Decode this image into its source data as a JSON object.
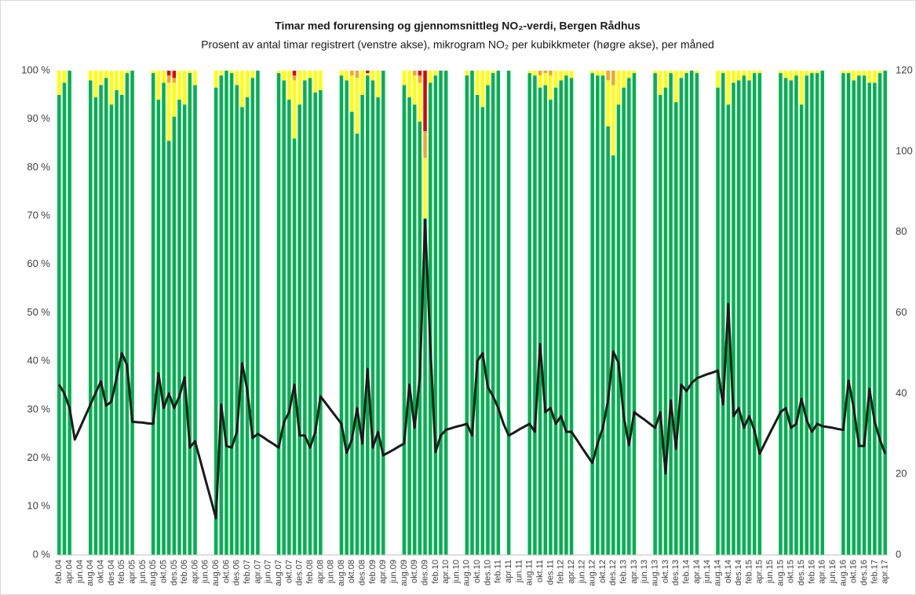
{
  "chart_data": {
    "type": "bar",
    "stacked": true,
    "title": "Timar med forurensing og gjennomsnittleg NO₂-verdi, Bergen Rådhus",
    "subtitle": "Prosent av antal timar registrert (venstre akse), mikrogram NO₂ per kubikkmeter (høgre akse), per måned",
    "categories": [
      "feb.04",
      null,
      "apr.04",
      null,
      "jun.04",
      null,
      "aug.04",
      null,
      "okt.04",
      null,
      "des.04",
      null,
      "feb.05",
      null,
      "apr.05",
      null,
      "jun.05",
      null,
      "aug.05",
      null,
      "okt.05",
      null,
      "des.05",
      null,
      "feb.06",
      null,
      "apr.06",
      null,
      "jun.06",
      null,
      "aug.06",
      null,
      "okt.06",
      null,
      "des.06",
      null,
      "feb.07",
      null,
      "apr.07",
      null,
      "jun.07",
      null,
      "aug.07",
      null,
      "okt.07",
      null,
      "des.07",
      null,
      "feb.08",
      null,
      "apr.08",
      null,
      "jun.08",
      null,
      "aug.08",
      null,
      "okt.08",
      null,
      "des.08",
      null,
      "feb.09",
      null,
      "apr.09",
      null,
      "jun.09",
      null,
      "aug.09",
      null,
      "okt.09",
      null,
      "des.09",
      null,
      "feb.10",
      null,
      "apr.10",
      null,
      "jun.10",
      null,
      "aug.10",
      null,
      "okt.10",
      null,
      "des.10",
      null,
      "feb.11",
      null,
      "apr.11",
      null,
      "jun.11",
      null,
      "aug.11",
      null,
      "okt.11",
      null,
      "des.11",
      null,
      "feb.12",
      null,
      "apr.12",
      null,
      "jun.12",
      null,
      "aug.12",
      null,
      "okt.12",
      null,
      "des.12",
      null,
      "feb.13",
      null,
      "apr.13",
      null,
      "jun.13",
      null,
      "aug.13",
      null,
      "okt.13",
      null,
      "des.13",
      null,
      "feb.14",
      null,
      "apr.14",
      null,
      "jun.14",
      null,
      "aug.14",
      null,
      "okt.14",
      null,
      "des.14",
      null,
      "feb.15",
      null,
      "apr.15",
      null,
      "jun.15",
      null,
      "aug.15",
      null,
      "okt.15",
      null,
      "des.15",
      null,
      "feb.16",
      null,
      "apr.16",
      null,
      "jun.16",
      null,
      "aug.16",
      null,
      "okt.16",
      null,
      "des.16",
      null,
      "feb.17",
      null,
      "apr.17"
    ],
    "series": [
      {
        "type": "bar",
        "color": "#00b050",
        "values": [
          95,
          97.5,
          100,
          null,
          null,
          null,
          98,
          94.5,
          97,
          98.5,
          93,
          96,
          95,
          99.5,
          100,
          null,
          null,
          null,
          99.5,
          94,
          97.5,
          85.5,
          90.5,
          94,
          93,
          99.5,
          97,
          null,
          null,
          null,
          96.5,
          99,
          100,
          99.5,
          97,
          92.5,
          94.5,
          98.5,
          100,
          null,
          null,
          null,
          99.5,
          98,
          94,
          86,
          93,
          98,
          98.5,
          95.5,
          96,
          null,
          null,
          null,
          99,
          98,
          91.5,
          87,
          95,
          99,
          98,
          94.5,
          100,
          null,
          null,
          null,
          97,
          94.5,
          93,
          89.5,
          69.5,
          97.5,
          99,
          100,
          100,
          null,
          null,
          null,
          99,
          100,
          95,
          92.5,
          97,
          99.5,
          100,
          null,
          100,
          null,
          null,
          null,
          99.5,
          99,
          96.5,
          97,
          94,
          96.5,
          98,
          99,
          98.5,
          null,
          null,
          null,
          99.5,
          99,
          99,
          88.5,
          82.5,
          93,
          96.5,
          98.5,
          99.5,
          null,
          null,
          null,
          99.5,
          95,
          96.5,
          99.5,
          93.5,
          98.5,
          99.5,
          100,
          99.5,
          null,
          null,
          null,
          96.5,
          99.5,
          93,
          97.5,
          98,
          99,
          98,
          99.5,
          99.5,
          null,
          null,
          null,
          99.5,
          98.5,
          98,
          99,
          93,
          99,
          99.5,
          99.5,
          100,
          null,
          null,
          null,
          99.5,
          99.5,
          98,
          99,
          99,
          97.5,
          97.5,
          99.5,
          100
        ]
      },
      {
        "type": "bar",
        "color": "#ffff00",
        "values": [
          5,
          2.5,
          0,
          null,
          null,
          null,
          2,
          5.5,
          3,
          1.5,
          7,
          4,
          5,
          0.5,
          0,
          null,
          null,
          null,
          0.5,
          6,
          2.5,
          12,
          7,
          6,
          7,
          0.5,
          3,
          null,
          null,
          null,
          3.5,
          1,
          0,
          0.5,
          3,
          7.5,
          5.5,
          1.5,
          0,
          null,
          null,
          null,
          0.5,
          2,
          6,
          12,
          7,
          2,
          1.5,
          4.5,
          4,
          null,
          null,
          null,
          1,
          2,
          7.5,
          11.5,
          5,
          0.5,
          2,
          5.5,
          0,
          null,
          null,
          null,
          3,
          5.5,
          6,
          8,
          12.5,
          2.5,
          1,
          0,
          0,
          null,
          null,
          null,
          1,
          0,
          5,
          7.5,
          3,
          0.5,
          0,
          null,
          0,
          null,
          null,
          null,
          0.5,
          1,
          2.5,
          2.5,
          5,
          3.5,
          2,
          1,
          1.5,
          null,
          null,
          null,
          0.5,
          1,
          1,
          9.5,
          14.5,
          7,
          3.5,
          1.5,
          0.5,
          null,
          null,
          null,
          0.5,
          5,
          3.5,
          0.5,
          6.5,
          1.5,
          0.5,
          0,
          0.5,
          null,
          null,
          null,
          3.5,
          0.5,
          7,
          2.5,
          2,
          1,
          2,
          0.5,
          0.5,
          null,
          null,
          null,
          0.5,
          1.5,
          2,
          1,
          7,
          1,
          0.5,
          0.5,
          0,
          null,
          null,
          null,
          0.5,
          0.5,
          2,
          1,
          1,
          2.5,
          2.5,
          0.5,
          0
        ]
      },
      {
        "type": "bar",
        "color": "#f5a623",
        "values": [
          0,
          0,
          0,
          null,
          null,
          null,
          0,
          0,
          0,
          0,
          0,
          0,
          0,
          0,
          0,
          null,
          null,
          null,
          0,
          0,
          0,
          1.5,
          1,
          0,
          0,
          0,
          0,
          null,
          null,
          null,
          0,
          0,
          0,
          0,
          0,
          0,
          0,
          0,
          0,
          null,
          null,
          null,
          0,
          0,
          0,
          1,
          0,
          0,
          0,
          0,
          0,
          null,
          null,
          null,
          0,
          0,
          1,
          1.5,
          0,
          0,
          0,
          0,
          0,
          null,
          null,
          null,
          0,
          0,
          1,
          1.5,
          5.5,
          0,
          0,
          0,
          0,
          null,
          null,
          null,
          0,
          0,
          0,
          0,
          0,
          0,
          0,
          null,
          0,
          null,
          null,
          null,
          0,
          0,
          1,
          0.5,
          1,
          0,
          0,
          0,
          0,
          null,
          null,
          null,
          0,
          0,
          0,
          2,
          3,
          0,
          0,
          0,
          0,
          null,
          null,
          null,
          0,
          0,
          0,
          0,
          0,
          0,
          0,
          0,
          0,
          null,
          null,
          null,
          0,
          0,
          0,
          0,
          0,
          0,
          0,
          0,
          0,
          null,
          null,
          null,
          0,
          0,
          0,
          0,
          0,
          0,
          0,
          0,
          0,
          null,
          null,
          null,
          0,
          0,
          0,
          0,
          0,
          0,
          0,
          0,
          0
        ]
      },
      {
        "type": "bar",
        "color": "#e00000",
        "values": [
          0,
          0,
          0,
          null,
          null,
          null,
          0,
          0,
          0,
          0,
          0,
          0,
          0,
          0,
          0,
          null,
          null,
          null,
          0,
          0,
          0,
          1,
          1.5,
          0,
          0,
          0,
          0,
          null,
          null,
          null,
          0,
          0,
          0,
          0,
          0,
          0,
          0,
          0,
          0,
          null,
          null,
          null,
          0,
          0,
          0,
          1,
          0,
          0,
          0,
          0,
          0,
          null,
          null,
          null,
          0,
          0,
          0,
          0,
          0,
          0.5,
          0,
          0,
          0,
          null,
          null,
          null,
          0,
          0,
          0,
          1,
          12.5,
          0,
          0,
          0,
          0,
          null,
          null,
          null,
          0,
          0,
          0,
          0,
          0,
          0,
          0,
          null,
          0,
          null,
          null,
          null,
          0,
          0,
          0,
          0,
          0,
          0,
          0,
          0,
          0,
          null,
          null,
          null,
          0,
          0,
          0,
          0,
          0,
          0,
          0,
          0,
          0,
          null,
          null,
          null,
          0,
          0,
          0,
          0,
          0,
          0,
          0,
          0,
          0,
          null,
          null,
          null,
          0,
          0,
          0,
          0,
          0,
          0,
          0,
          0,
          0,
          null,
          null,
          null,
          0,
          0,
          0,
          0,
          0,
          0,
          0,
          0,
          0,
          null,
          null,
          null,
          0,
          0,
          0,
          0,
          0,
          0,
          0,
          0,
          0
        ]
      },
      {
        "type": "line",
        "axis": "y2",
        "color": "#1a1a1a",
        "values": [
          42.2,
          40,
          36.4,
          28.6,
          31.5,
          34.4,
          37.3,
          40.2,
          43,
          37,
          38,
          44,
          50,
          47,
          33,
          32.9,
          32.8,
          32.6,
          32.5,
          45,
          36.4,
          40,
          36.4,
          39.3,
          44,
          26.6,
          28.2,
          23.4,
          18.6,
          13.9,
          9.1,
          37.3,
          27,
          26.6,
          30.5,
          47.5,
          40.8,
          29,
          30,
          29.2,
          28.3,
          27.5,
          26.6,
          32.9,
          35.4,
          42.2,
          29.6,
          29.6,
          26.6,
          30.5,
          39.3,
          37.6,
          35.9,
          34.2,
          32.5,
          25.3,
          28.6,
          36.4,
          27.6,
          46.1,
          26.6,
          30.5,
          24.7,
          25.4,
          26.1,
          26.9,
          27.6,
          42.2,
          31.5,
          44.1,
          83,
          51.9,
          25.5,
          29.6,
          31,
          31.4,
          31.8,
          32.1,
          32.5,
          29.6,
          48,
          50,
          41.6,
          39.3,
          36.4,
          32.5,
          29.6,
          30.3,
          31.1,
          31.8,
          32.5,
          30.5,
          52.3,
          35.4,
          36.4,
          32.5,
          34.4,
          30.5,
          30.5,
          28.6,
          26.6,
          24.7,
          22.8,
          27.6,
          31.5,
          38.3,
          50.4,
          47.6,
          34.4,
          27.2,
          35.4,
          34.4,
          33.5,
          32.5,
          31.5,
          35.4,
          20.2,
          38.3,
          26.3,
          42.2,
          40.6,
          42.6,
          43.8,
          44.3,
          44.8,
          45.2,
          45.7,
          37.3,
          62.2,
          34.4,
          36.4,
          31.5,
          34.4,
          30.9,
          25.1,
          27.7,
          30.3,
          32.8,
          35.4,
          36.4,
          31.5,
          32.5,
          38.7,
          33.4,
          30.5,
          32.5,
          31.9,
          31.7,
          31.5,
          31.2,
          31,
          43.2,
          36.4,
          27,
          27,
          41.2,
          33,
          28.6,
          25.1
        ]
      }
    ],
    "ylim": [
      0,
      100
    ],
    "yticks": [
      {
        "value": 0,
        "label": "0 %"
      },
      {
        "value": 10,
        "label": "10 %"
      },
      {
        "value": 20,
        "label": "20 %"
      },
      {
        "value": 30,
        "label": "30 %"
      },
      {
        "value": 40,
        "label": "40 %"
      },
      {
        "value": 50,
        "label": "50 %"
      },
      {
        "value": 60,
        "label": "60 %"
      },
      {
        "value": 70,
        "label": "70 %"
      },
      {
        "value": 80,
        "label": "80 %"
      },
      {
        "value": 90,
        "label": "90 %"
      },
      {
        "value": 100,
        "label": "100 %"
      }
    ],
    "y2lim": [
      0,
      120
    ],
    "y2ticks": [
      0,
      20,
      40,
      60,
      80,
      100,
      120
    ]
  }
}
